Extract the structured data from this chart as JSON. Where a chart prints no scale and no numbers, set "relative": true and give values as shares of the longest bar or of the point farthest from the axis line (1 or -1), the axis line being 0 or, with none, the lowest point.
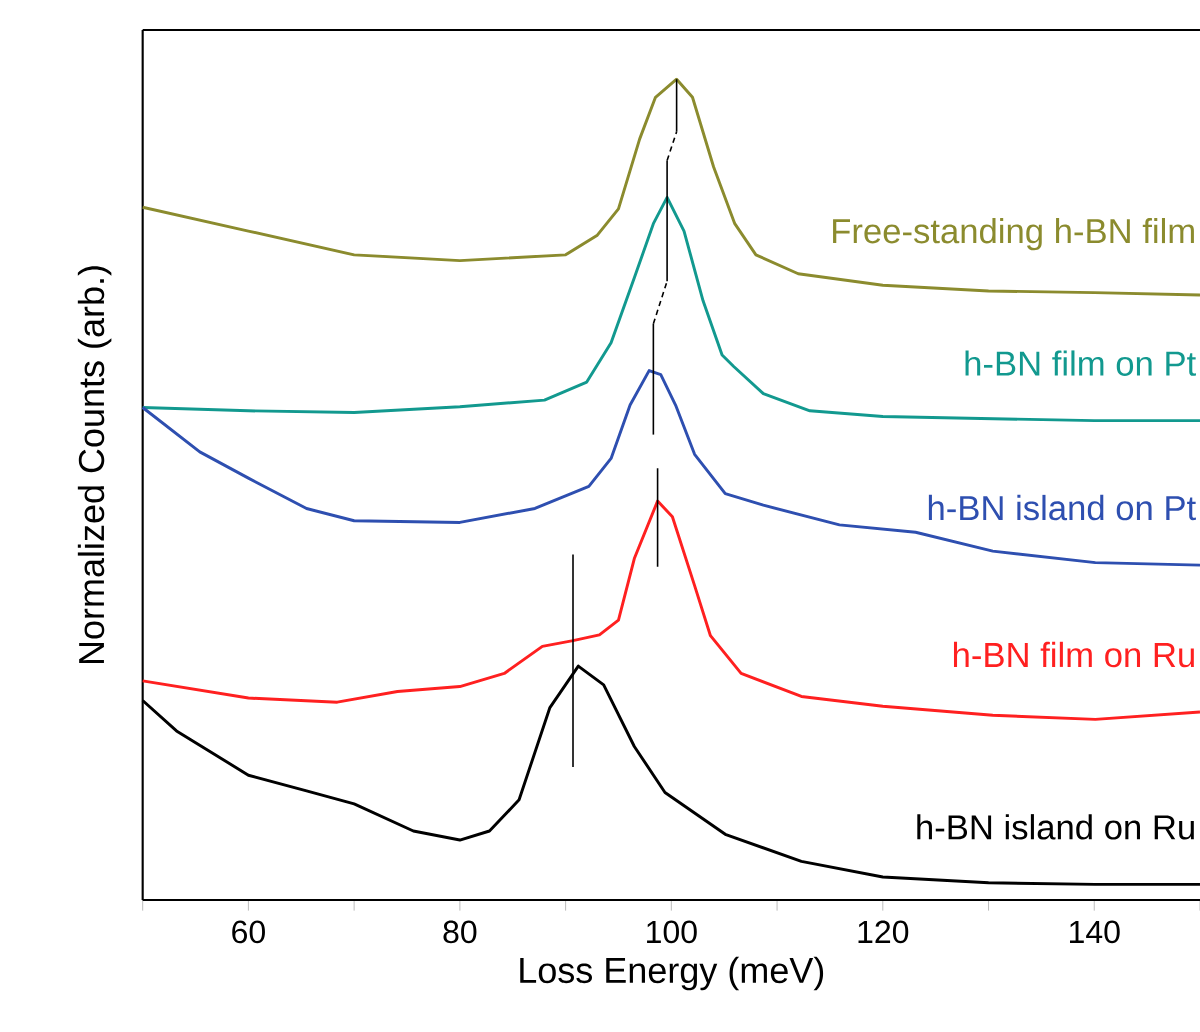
{
  "chart_data": {
    "type": "line",
    "xlabel": "Loss Energy (meV)",
    "ylabel": "Normalized Counts (arb.)",
    "relative": true,
    "marker": "none",
    "line_style": "solid",
    "xlim": [
      50,
      150
    ],
    "xticks": [
      {
        "value": 50,
        "label": null
      },
      60,
      {
        "value": 70,
        "label": null
      },
      80,
      {
        "value": 90,
        "label": null
      },
      100,
      {
        "value": 110,
        "label": null
      },
      120,
      {
        "value": 130,
        "label": null
      },
      140,
      {
        "value": 150,
        "label": null
      }
    ],
    "series": [
      {
        "name": "Free-standing h-BN film",
        "color": "#8b8b2e",
        "x": [
          50,
          60,
          70,
          80,
          90,
          93,
          95,
          97,
          98.5,
          100.5,
          102,
          104,
          106,
          108,
          112,
          120,
          130,
          140,
          150
        ],
        "values": [
          0.844,
          0.815,
          0.786,
          0.779,
          0.786,
          0.81,
          0.842,
          0.927,
          0.978,
          1.0,
          0.978,
          0.893,
          0.824,
          0.786,
          0.763,
          0.749,
          0.742,
          0.74,
          0.737
        ]
      },
      {
        "name": "h-BN film on Pt",
        "color": "#12998f",
        "x": [
          50,
          60,
          70,
          80,
          88,
          92,
          94.3,
          96.5,
          98.3,
          99.6,
          101.2,
          103,
          104.8,
          105.9,
          108.7,
          113.1,
          120,
          140,
          150
        ],
        "values": [
          0.6,
          0.596,
          0.594,
          0.601,
          0.609,
          0.631,
          0.679,
          0.758,
          0.824,
          0.856,
          0.815,
          0.73,
          0.664,
          0.65,
          0.617,
          0.596,
          0.589,
          0.584,
          0.584
        ]
      },
      {
        "name": "h-BN island on Pt",
        "color": "#2e4fb0",
        "x": [
          50,
          55.4,
          60,
          65.5,
          70,
          80,
          87.1,
          92.2,
          94.3,
          96.1,
          97.9,
          99,
          100.4,
          102.2,
          105.1,
          108.7,
          115.9,
          123.1,
          130.4,
          140.1,
          150
        ],
        "values": [
          0.6,
          0.546,
          0.514,
          0.477,
          0.462,
          0.46,
          0.477,
          0.504,
          0.538,
          0.603,
          0.645,
          0.64,
          0.603,
          0.543,
          0.495,
          0.481,
          0.457,
          0.448,
          0.425,
          0.411,
          0.408
        ]
      },
      {
        "name": "h-BN film on Ru",
        "color": "#ff2020",
        "x": [
          50,
          60,
          68.4,
          74.1,
          80,
          84.2,
          87.8,
          90.7,
          93.2,
          95,
          96.5,
          98.7,
          100.1,
          102.2,
          103.7,
          106.6,
          112.3,
          120,
          130.4,
          140.1,
          150
        ],
        "values": [
          0.267,
          0.246,
          0.241,
          0.254,
          0.26,
          0.276,
          0.309,
          0.316,
          0.323,
          0.341,
          0.416,
          0.486,
          0.467,
          0.383,
          0.322,
          0.276,
          0.248,
          0.236,
          0.225,
          0.22,
          0.229
        ]
      },
      {
        "name": "h-BN island on Ru",
        "color": "#000000",
        "x": [
          50,
          53.2,
          60,
          65.5,
          70,
          75.6,
          80,
          82.8,
          85.6,
          88.5,
          91.2,
          93.6,
          96.5,
          99.4,
          105.1,
          112.3,
          120,
          130,
          140.1,
          150
        ],
        "values": [
          0.243,
          0.206,
          0.152,
          0.133,
          0.117,
          0.084,
          0.073,
          0.084,
          0.122,
          0.234,
          0.285,
          0.262,
          0.187,
          0.131,
          0.08,
          0.047,
          0.028,
          0.021,
          0.019,
          0.019
        ]
      },
      {
        "color": "#000000",
        "x": [
          90.7,
          90.7
        ],
        "values": [
          0.162,
          0.421
        ]
      },
      {
        "color": "#000000",
        "x": [
          98.7,
          98.7
        ],
        "values": [
          0.406,
          0.526
        ]
      },
      {
        "color": "#000000",
        "x": [
          98.3,
          98.3
        ],
        "values": [
          0.567,
          0.702
        ]
      },
      {
        "color": "#000000",
        "x": [
          99.6,
          99.6
        ],
        "values": [
          0.754,
          0.901
        ]
      },
      {
        "color": "#000000",
        "x": [
          100.5,
          100.5
        ],
        "values": [
          0.936,
          1.0
        ]
      },
      {
        "color": "#000000",
        "line_style": "dashed",
        "x": [
          98.3,
          99.6
        ],
        "values": [
          0.702,
          0.754
        ]
      },
      {
        "color": "#000000",
        "line_style": "dashed",
        "x": [
          99.6,
          100.5
        ],
        "values": [
          0.901,
          0.936
        ]
      }
    ]
  }
}
